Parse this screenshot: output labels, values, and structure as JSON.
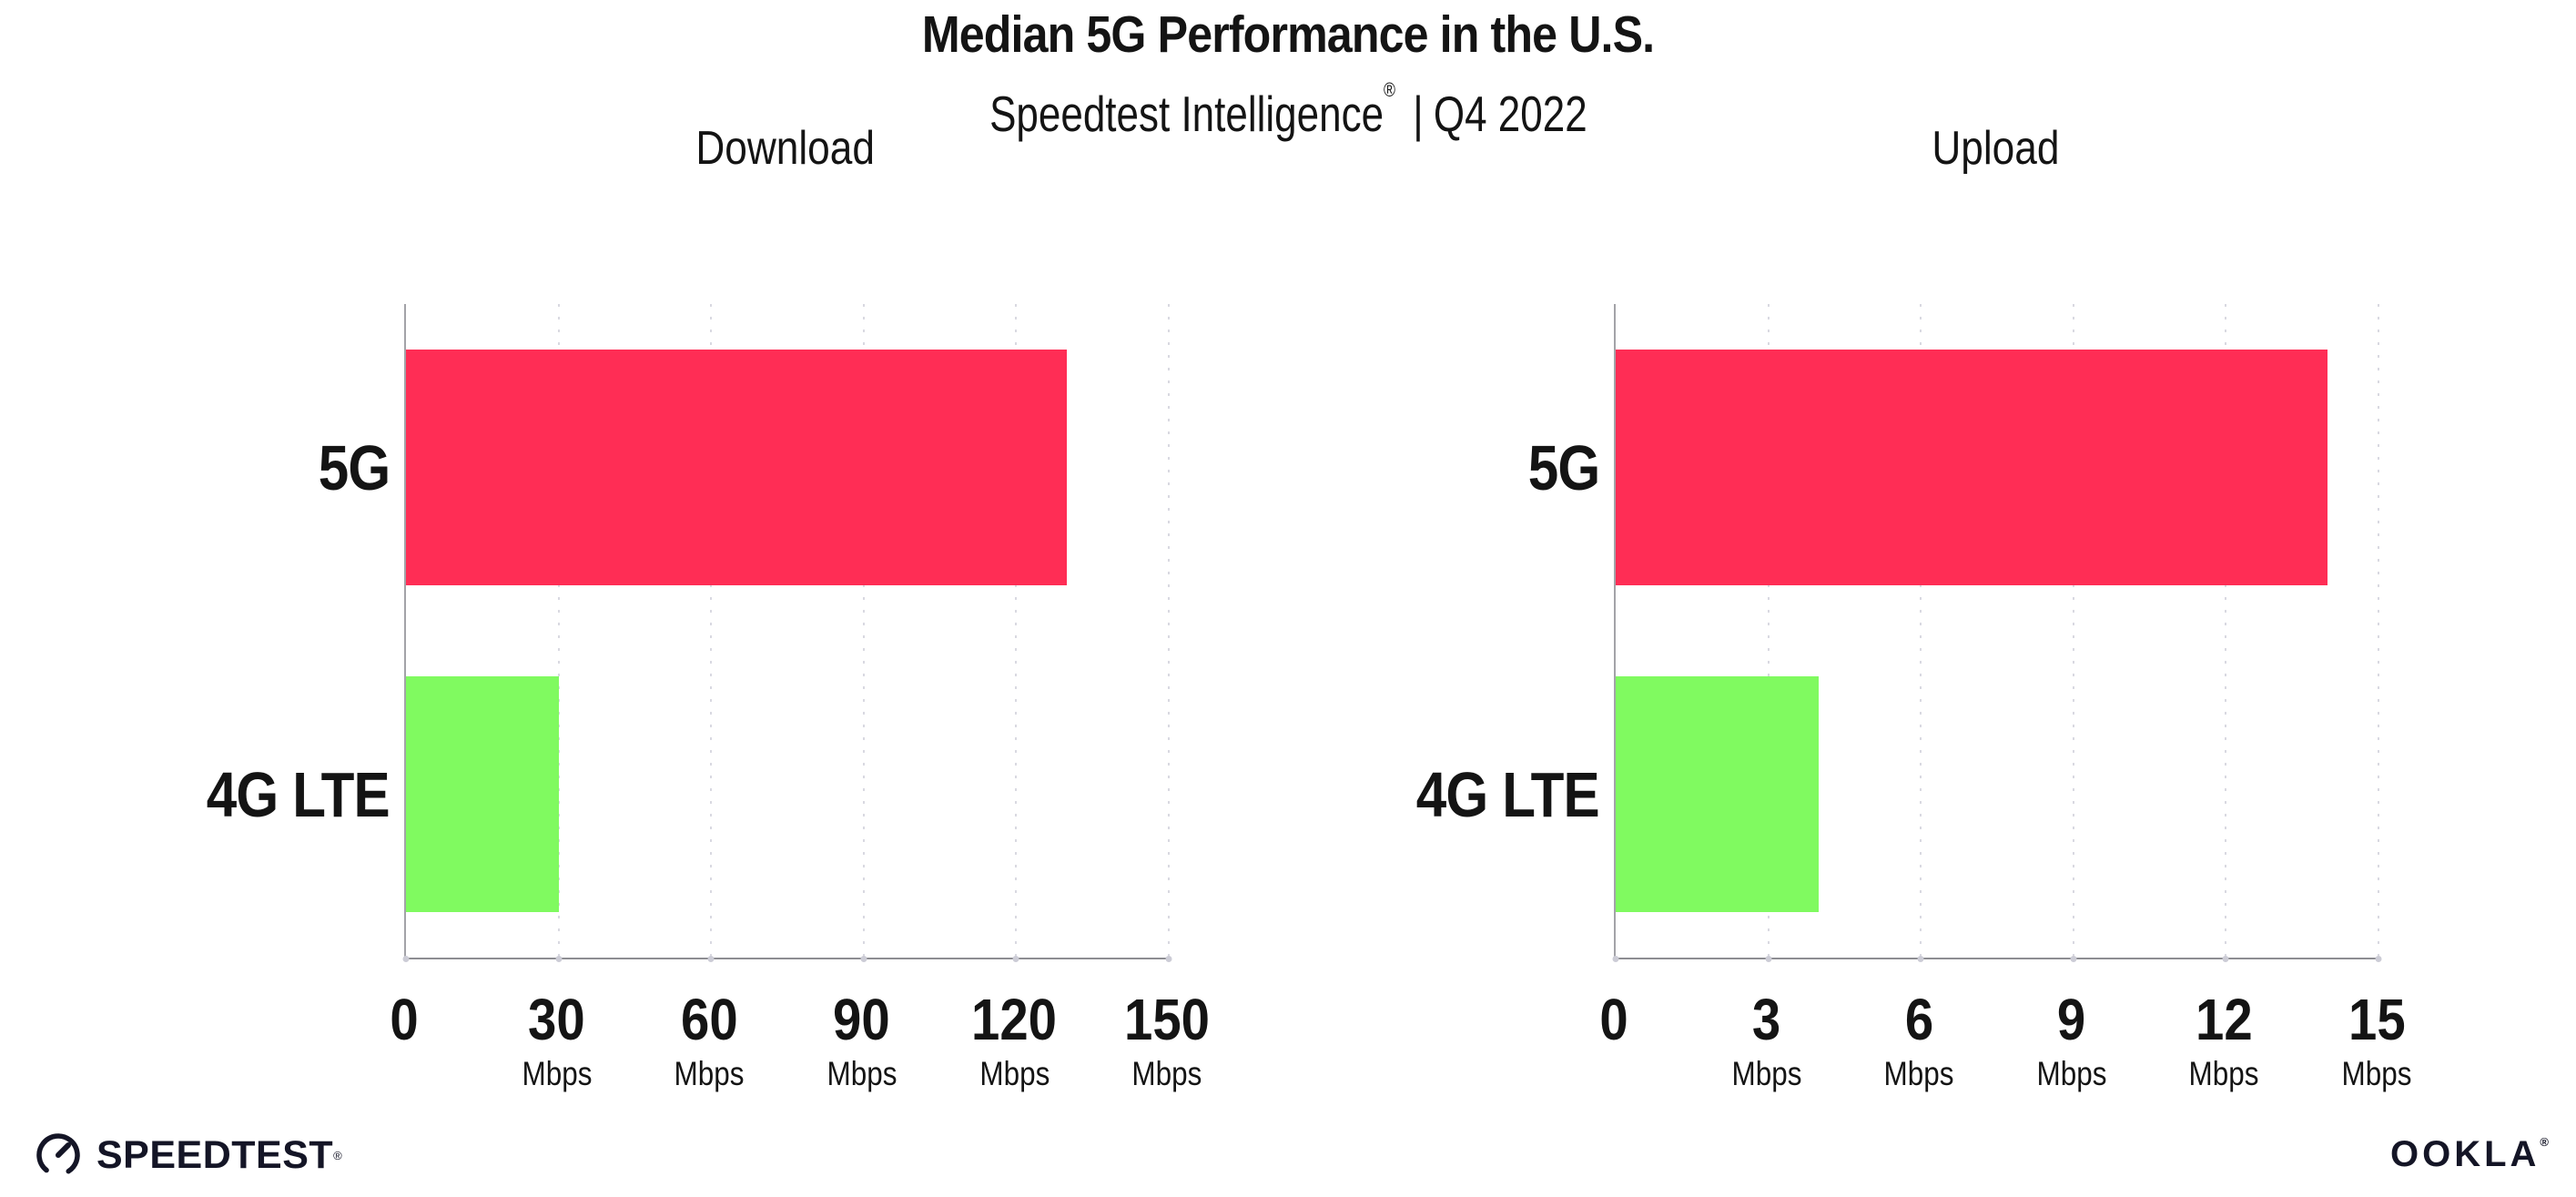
{
  "header": {
    "title": "Median 5G Performance in the U.S.",
    "subtitle_brand": "Speedtest Intelligence",
    "subtitle_reg": "®",
    "subtitle_sep": "|",
    "subtitle_period": "Q4 2022"
  },
  "colors": {
    "bar_5g": "#FF2D55",
    "bar_4g_lte": "#80FA60",
    "axis_line": "#8d8d92",
    "y_axis_line": "#a3a3a8",
    "gridline": "#d9d9e1",
    "text": "#141414",
    "logo_text": "#141526"
  },
  "chart_data": [
    {
      "type": "bar",
      "orientation": "horizontal",
      "title": "Download",
      "categories": [
        "5G",
        "4G LTE"
      ],
      "values": [
        130,
        30
      ],
      "unit": "Mbps",
      "xlim": [
        0,
        150
      ],
      "xticks": [
        0,
        30,
        60,
        90,
        120,
        150
      ],
      "grid": "dotted-vertical",
      "legend": "none",
      "bar_colors": [
        "#FF2D55",
        "#80FA60"
      ]
    },
    {
      "type": "bar",
      "orientation": "horizontal",
      "title": "Upload",
      "categories": [
        "5G",
        "4G LTE"
      ],
      "values": [
        14,
        4
      ],
      "unit": "Mbps",
      "xlim": [
        0,
        15
      ],
      "xticks": [
        0,
        3,
        6,
        9,
        12,
        15
      ],
      "grid": "dotted-vertical",
      "legend": "none",
      "bar_colors": [
        "#FF2D55",
        "#80FA60"
      ]
    }
  ],
  "footer": {
    "speedtest_label": "SPEEDTEST",
    "speedtest_reg": "®",
    "ookla_label": "OOKLA",
    "ookla_reg": "®"
  }
}
